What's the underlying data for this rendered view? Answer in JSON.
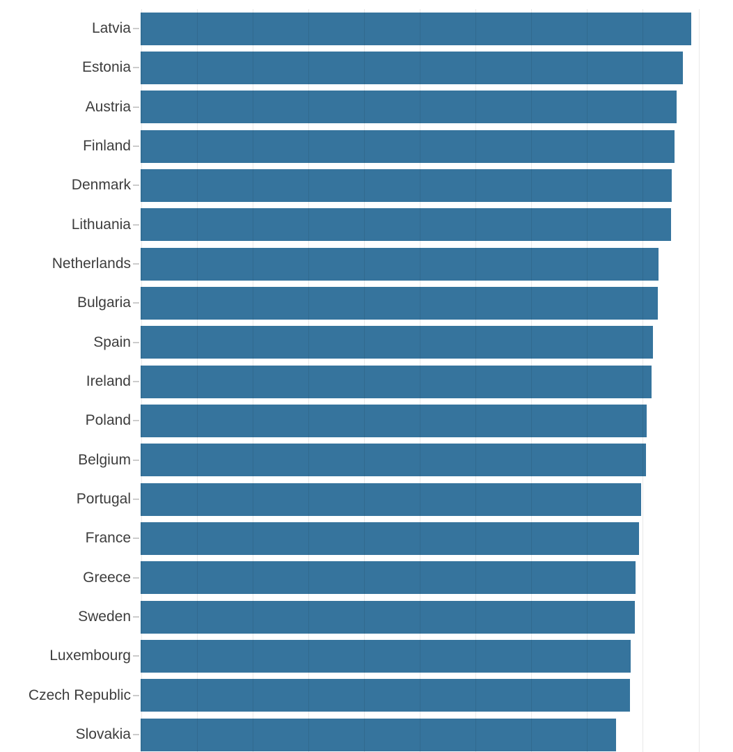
{
  "chart_data": {
    "type": "bar",
    "orientation": "horizontal",
    "categories": [
      "Latvia",
      "Estonia",
      "Austria",
      "Finland",
      "Denmark",
      "Lithuania",
      "Netherlands",
      "Bulgaria",
      "Spain",
      "Ireland",
      "Poland",
      "Belgium",
      "Portugal",
      "France",
      "Greece",
      "Sweden",
      "Luxembourg",
      "Czech Republic",
      "Slovakia"
    ],
    "values": [
      98.7,
      97.2,
      96.1,
      95.7,
      95.3,
      95.1,
      92.9,
      92.8,
      91.9,
      91.6,
      90.7,
      90.6,
      89.8,
      89.4,
      88.8,
      88.6,
      87.9,
      87.8,
      85.2
    ],
    "xlim": [
      0,
      106
    ],
    "gridline_interval": 10,
    "grid": true,
    "legend": false,
    "value_labels_visible": false,
    "axis_tick_labels_visible": false,
    "note_values_estimated_from_unlabeled_gridlines": true
  },
  "colors": {
    "bar": "#36749D",
    "gridline": "#e6e6e6",
    "tick": "#cccccc",
    "label": "#3d3d3d",
    "background": "#ffffff"
  }
}
